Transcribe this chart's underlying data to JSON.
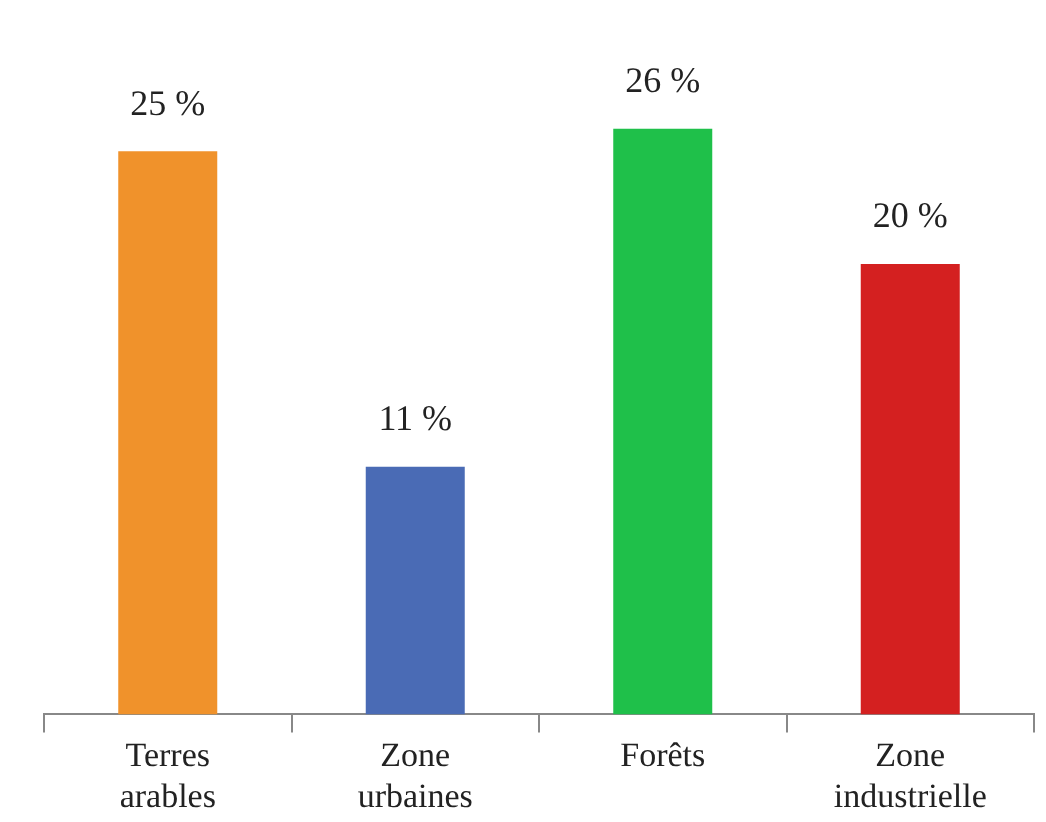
{
  "chart_data": {
    "type": "bar",
    "categories": [
      "Terres arables",
      "Zone urbaines",
      "Forêts",
      "Zone industrielle"
    ],
    "values": [
      25,
      11,
      26,
      20
    ],
    "value_labels": [
      "25 %",
      "11 %",
      "26 %",
      "20 %"
    ],
    "colors": [
      "#f0922b",
      "#4a6bb5",
      "#1fc04a",
      "#d42020"
    ],
    "legend": false,
    "grid": false
  }
}
